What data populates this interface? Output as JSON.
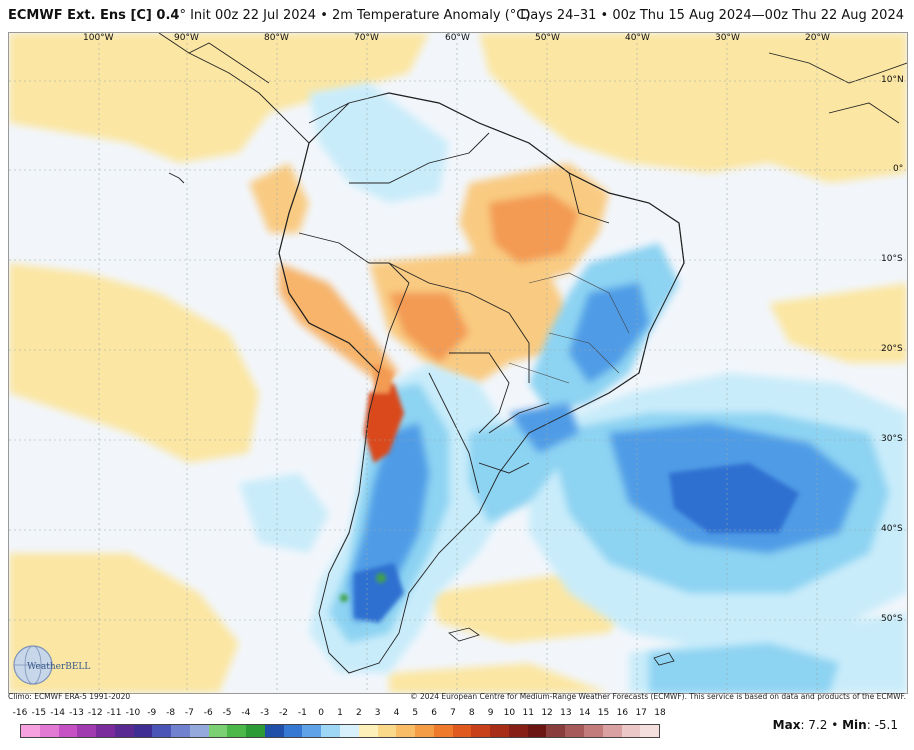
{
  "header": {
    "model": "ECMWF Ext. Ens [C] 0.4",
    "init": "° Init 00z 22 Jul 2024 • 2m Temperature Anomaly (°C)",
    "valid": "Days 24–31 • 00z Thu 15 Aug 2024—00z Thu 22 Aug 2024"
  },
  "map": {
    "lon_labels": [
      "100°W",
      "90°W",
      "80°W",
      "70°W",
      "60°W",
      "50°W",
      "40°W",
      "30°W",
      "20°W"
    ],
    "lat_labels": [
      "10°N",
      "0°",
      "10°S",
      "20°S",
      "30°S",
      "40°S",
      "50°S"
    ],
    "colors": {
      "ocean": "#f2f6fb",
      "warm_light": "#fbe6a3",
      "warm_mid": "#f9cb82",
      "warm_strong": "#f39a52",
      "hot": "#d9481f",
      "cool_light": "#c9ecfa",
      "cool_mid": "#8dd3f2",
      "cool_strong": "#4f9be6",
      "cold": "#2f6fd0",
      "very_cold": "#3fa24a",
      "border": "#222222"
    }
  },
  "footer": {
    "climo": "Climo: ECMWF ERA-5 1991-2020",
    "copyright": "© 2024 European Centre for Medium-Range Weather Forecasts (ECMWF). This service is based on data and products of the ECMWF."
  },
  "colorbar": {
    "ticks": [
      "-16",
      "-15",
      "-14",
      "-13",
      "-12",
      "-11",
      "-10",
      "-9",
      "-8",
      "-7",
      "-6",
      "-5",
      "-4",
      "-3",
      "-2",
      "-1",
      "0",
      "1",
      "2",
      "3",
      "4",
      "5",
      "6",
      "7",
      "8",
      "9",
      "10",
      "11",
      "12",
      "13",
      "14",
      "15",
      "16",
      "17",
      "18"
    ],
    "colors": [
      "#f7a1e0",
      "#e27ad4",
      "#c651c4",
      "#a13bb0",
      "#7a2b9c",
      "#5a2a93",
      "#3f2f94",
      "#4a55b7",
      "#6f81cf",
      "#96a9dd",
      "#7bd074",
      "#4cb84a",
      "#2c9a35",
      "#1f4fa8",
      "#3478d4",
      "#5fa2e8",
      "#9ed6f5",
      "#d8f0fb",
      "#fdf0b8",
      "#fbd98a",
      "#f8bd66",
      "#f59c46",
      "#ef7a2c",
      "#e05a1f",
      "#c7401a",
      "#a82d17",
      "#871f16",
      "#6b1612",
      "#8a3d3d",
      "#a65a5a",
      "#c27c7c",
      "#d9a1a1",
      "#ecc7c7",
      "#f5dede"
    ]
  },
  "stats": {
    "max_label": "Max",
    "max_value": "7.2",
    "min_label": "Min",
    "min_value": "-5.1"
  }
}
